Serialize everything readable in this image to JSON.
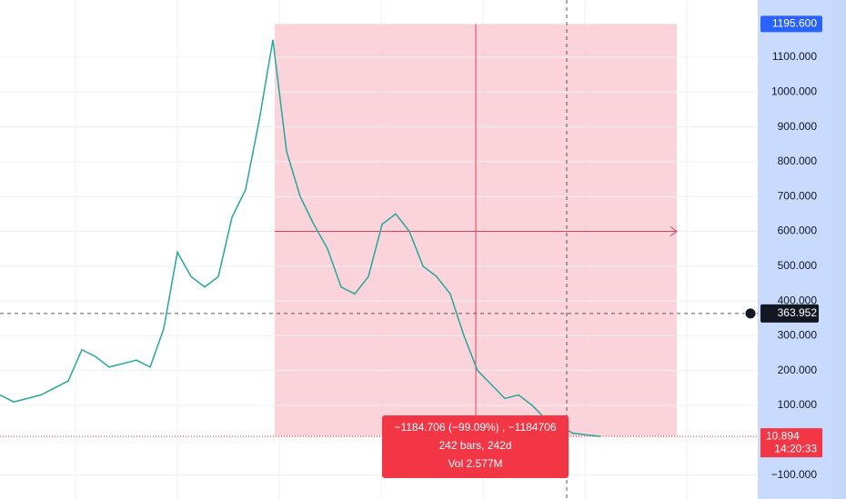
{
  "price_axis": {
    "ticks": [
      {
        "value": 1100,
        "label": "1100.000"
      },
      {
        "value": 1000,
        "label": "1000.000"
      },
      {
        "value": 900,
        "label": "900.000"
      },
      {
        "value": 800,
        "label": "800.000"
      },
      {
        "value": 700,
        "label": "700.000"
      },
      {
        "value": 600,
        "label": "600.000"
      },
      {
        "value": 500,
        "label": "500.000"
      },
      {
        "value": 400,
        "label": "400.000"
      },
      {
        "value": 300,
        "label": "300.000"
      },
      {
        "value": 200,
        "label": "200.000"
      },
      {
        "value": 100,
        "label": "100.000"
      },
      {
        "value": -100,
        "label": "−100.000"
      }
    ]
  },
  "price_line": {
    "color": "#26a69a",
    "values": [
      130,
      110,
      120,
      130,
      150,
      170,
      260,
      240,
      210,
      220,
      230,
      210,
      320,
      540,
      470,
      440,
      470,
      640,
      720,
      920,
      1150,
      830,
      700,
      620,
      550,
      440,
      420,
      470,
      620,
      650,
      600,
      500,
      470,
      420,
      300,
      200,
      160,
      120,
      130,
      100,
      60,
      40,
      20,
      15,
      11
    ]
  },
  "markers": {
    "high": {
      "value": 1195.6,
      "label": "1195.600"
    },
    "crosshair": {
      "value": 363.952,
      "label": "363.952"
    },
    "last": {
      "value": 10.894,
      "label": "10.894"
    },
    "countdown": "14:20:33"
  },
  "measure": {
    "line1": "−1184.706 (−99.09%) , −1184706",
    "line2": "242 bars, 242d",
    "line3": "Vol 2.577M"
  }
}
